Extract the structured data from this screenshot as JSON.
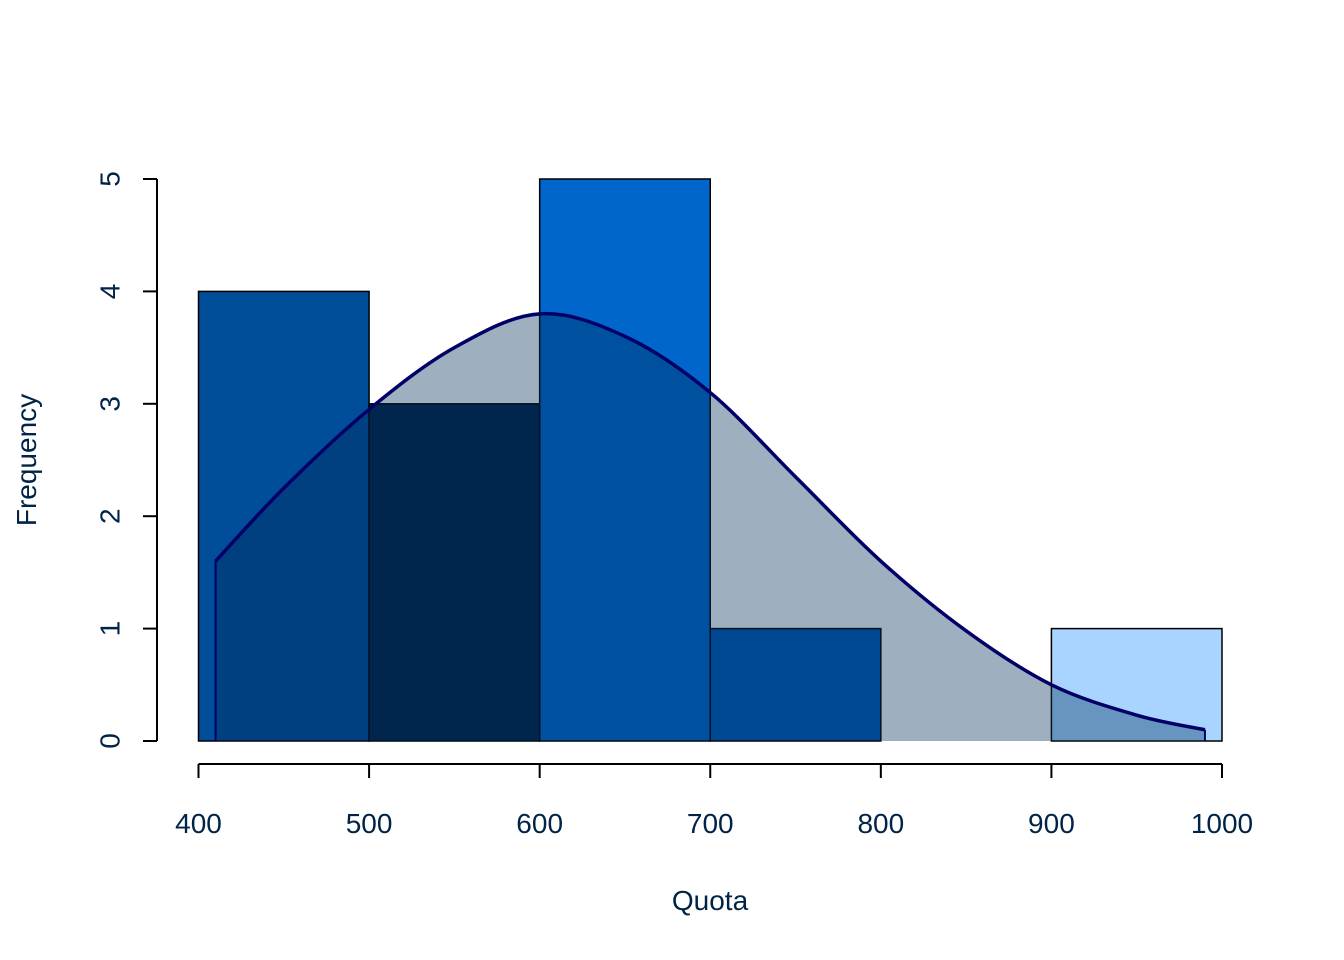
{
  "chart_data": {
    "type": "bar",
    "title": "",
    "xlabel": "Quota",
    "ylabel": "Frequency",
    "xlim": [
      400,
      1000
    ],
    "ylim": [
      0,
      5
    ],
    "x_ticks": [
      "400",
      "500",
      "600",
      "700",
      "800",
      "900",
      "1000"
    ],
    "y_ticks": [
      "0",
      "1",
      "2",
      "3",
      "4",
      "5"
    ],
    "grid": false,
    "bins": [
      {
        "start": 400,
        "end": 500,
        "count": 4,
        "color": "#004d99"
      },
      {
        "start": 500,
        "end": 600,
        "count": 3,
        "color": "#002347"
      },
      {
        "start": 600,
        "end": 700,
        "count": 5,
        "color": "#0066cc"
      },
      {
        "start": 700,
        "end": 800,
        "count": 1,
        "color": "#005ab3"
      },
      {
        "start": 800,
        "end": 900,
        "count": 0,
        "color": "#0073e6"
      },
      {
        "start": 900,
        "end": 1000,
        "count": 1,
        "color": "#a8d4ff"
      }
    ],
    "density_curve": {
      "color": "#000066",
      "fill": "#002c59",
      "fill_opacity": 0.38,
      "x": [
        410,
        450,
        500,
        550,
        600,
        650,
        700,
        750,
        800,
        850,
        900,
        950,
        990
      ],
      "y": [
        1.6,
        2.25,
        2.95,
        3.5,
        3.8,
        3.6,
        3.1,
        2.35,
        1.6,
        0.98,
        0.5,
        0.23,
        0.1
      ]
    }
  },
  "colors": {
    "text": "#002347",
    "axis": "#000000",
    "bar_border": "#000000"
  }
}
